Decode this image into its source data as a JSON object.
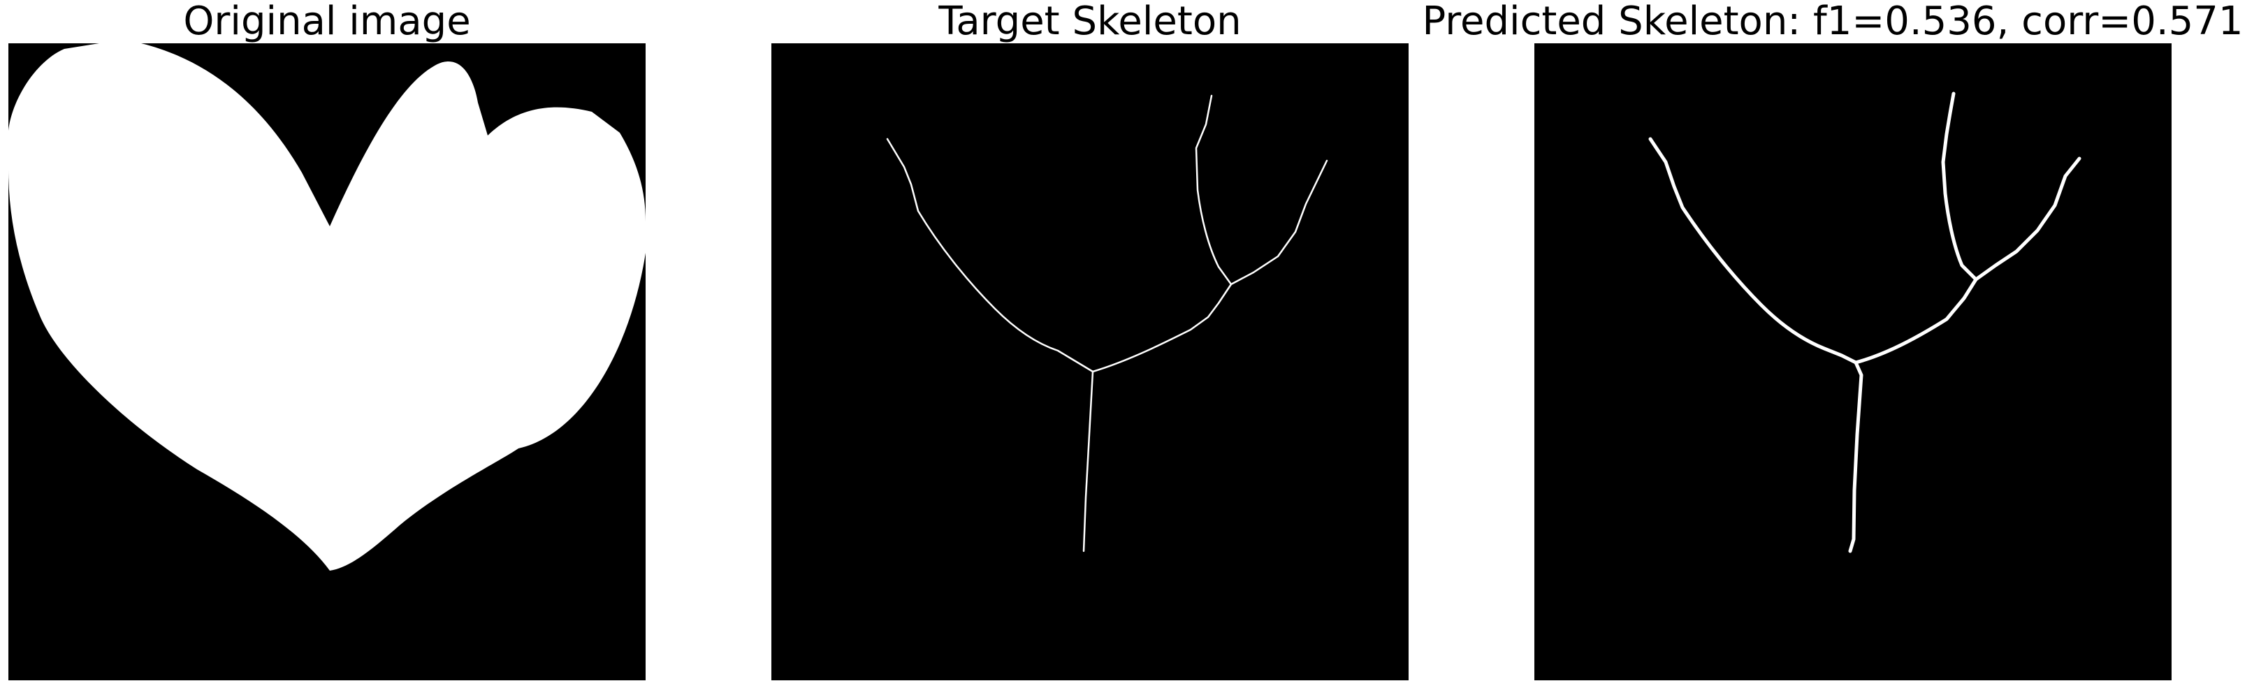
{
  "figure": {
    "panels": [
      {
        "title": "Original image"
      },
      {
        "title": "Target Skeleton"
      },
      {
        "title": "Predicted Skeleton: f1=0.536, corr=0.571"
      }
    ]
  },
  "colors": {
    "background": "#000000",
    "foreground": "#ffffff"
  }
}
